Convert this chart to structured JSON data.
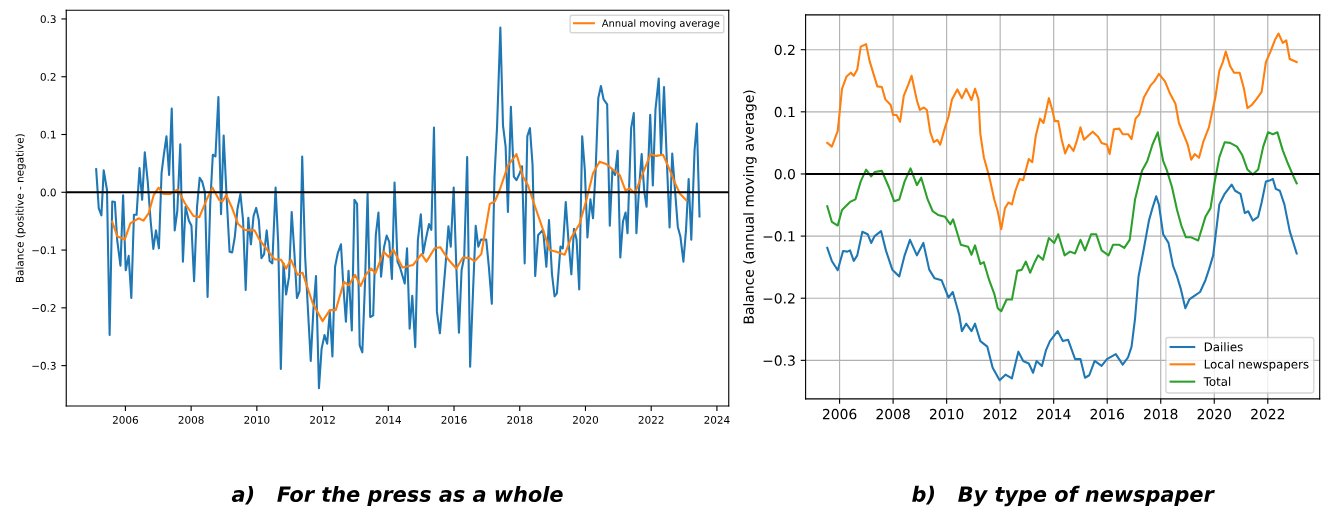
{
  "chart_data": [
    {
      "type": "line",
      "title": "a)   For the press as a whole",
      "ylabel": "Balance (positive - negative)",
      "xlim": [
        2004.2,
        2024.36
      ],
      "ylim": [
        -0.37,
        0.315
      ],
      "xticks": [
        2006,
        2008,
        2010,
        2012,
        2014,
        2016,
        2018,
        2020,
        2022,
        2024
      ],
      "yticks": [
        {
          "value": -0.3,
          "label": "−0.3"
        },
        {
          "value": -0.2,
          "label": "−0.2"
        },
        {
          "value": -0.1,
          "label": "−0.1"
        },
        {
          "value": 0,
          "label": "0.0"
        },
        {
          "value": 0.1,
          "label": "0.1"
        },
        {
          "value": 0.2,
          "label": "0.2"
        },
        {
          "value": 0.3,
          "label": "0.3"
        }
      ],
      "grid": false,
      "legend": "top right",
      "ref_lines": [
        {
          "axis": "y",
          "value": 0,
          "color": "#000000"
        }
      ],
      "series": [
        {
          "color": "#1f77b4",
          "x": [
            2005.11,
            2005.19,
            2005.27,
            2005.34,
            2005.44,
            2005.52,
            2005.6,
            2005.68,
            2005.75,
            2005.85,
            2005.93,
            2006.01,
            2006.1,
            2006.18,
            2006.26,
            2006.34,
            2006.43,
            2006.51,
            2006.59,
            2006.68,
            2006.77,
            2006.85,
            2006.93,
            2007.02,
            2007.1,
            2007.17,
            2007.25,
            2007.33,
            2007.41,
            2007.5,
            2007.58,
            2007.67,
            2007.75,
            2007.83,
            2007.93,
            2008.01,
            2008.09,
            2008.18,
            2008.26,
            2008.34,
            2008.42,
            2008.5,
            2008.58,
            2008.66,
            2008.74,
            2008.83,
            2008.91,
            2008.99,
            2009.08,
            2009.17,
            2009.25,
            2009.33,
            2009.41,
            2009.5,
            2009.58,
            2009.66,
            2009.74,
            2009.82,
            2009.9,
            2009.98,
            2010.06,
            2010.14,
            2010.22,
            2010.3,
            2010.39,
            2010.47,
            2010.57,
            2010.65,
            2010.73,
            2010.81,
            2010.89,
            2010.98,
            2011.06,
            2011.14,
            2011.22,
            2011.3,
            2011.38,
            2011.47,
            2011.55,
            2011.64,
            2011.72,
            2011.8,
            2011.89,
            2011.97,
            2012.06,
            2012.14,
            2012.22,
            2012.3,
            2012.38,
            2012.46,
            2012.56,
            2012.63,
            2012.71,
            2012.79,
            2012.89,
            2012.97,
            2013.05,
            2013.13,
            2013.21,
            2013.29,
            2013.37,
            2013.45,
            2013.54,
            2013.62,
            2013.7,
            2013.78,
            2013.87,
            2013.95,
            2014.03,
            2014.11,
            2014.19,
            2014.28,
            2014.35,
            2014.5,
            2014.57,
            2014.65,
            2014.73,
            2014.82,
            2014.9,
            2014.99,
            2015.06,
            2015.14,
            2015.24,
            2015.31,
            2015.39,
            2015.48,
            2015.57,
            2015.67,
            2015.75,
            2015.83,
            2015.9,
            2015.99,
            2016.07,
            2016.15,
            2016.23,
            2016.31,
            2016.4,
            2016.49,
            2016.58,
            2016.66,
            2016.74,
            2016.82,
            2016.98,
            2017.06,
            2017.15,
            2017.23,
            2017.31,
            2017.41,
            2017.49,
            2017.57,
            2017.64,
            2017.73,
            2017.82,
            2017.9,
            2018.0,
            2018.07,
            2018.15,
            2018.23,
            2018.31,
            2018.39,
            2018.47,
            2018.56,
            2018.71,
            2018.81,
            2018.89,
            2018.98,
            2019.06,
            2019.13,
            2019.24,
            2019.31,
            2019.4,
            2019.48,
            2019.57,
            2019.65,
            2019.73,
            2019.81,
            2019.9,
            2019.98,
            2020.06,
            2020.15,
            2020.23,
            2020.31,
            2020.39,
            2020.47,
            2020.55,
            2020.66,
            2020.74,
            2020.82,
            2020.9,
            2020.98,
            2021.06,
            2021.14,
            2021.22,
            2021.28,
            2021.39,
            2021.47,
            2021.55,
            2021.63,
            2021.71,
            2021.79,
            2021.86,
            2021.97,
            2022.05,
            2022.13,
            2022.23,
            2022.3,
            2022.39,
            2022.47,
            2022.56,
            2022.64,
            2022.81,
            2022.89,
            2022.98,
            2023.06,
            2023.14,
            2023.22,
            2023.32,
            2023.39,
            2023.47
          ],
          "values": [
            0.04,
            -0.028,
            -0.04,
            0.038,
            0.004,
            -0.247,
            -0.016,
            -0.017,
            -0.083,
            -0.127,
            -0.005,
            -0.135,
            -0.11,
            -0.183,
            -0.039,
            -0.039,
            0.042,
            -0.013,
            0.069,
            0.018,
            -0.051,
            -0.098,
            -0.066,
            -0.097,
            0.033,
            0.065,
            0.097,
            0.03,
            0.145,
            -0.066,
            -0.032,
            0.083,
            -0.12,
            -0.025,
            -0.049,
            -0.058,
            -0.154,
            -0.025,
            0.025,
            0.018,
            0,
            -0.181,
            -0.021,
            0.065,
            0.062,
            0.165,
            -0.038,
            0.098,
            -0.008,
            -0.103,
            -0.104,
            -0.077,
            -0.029,
            -0.003,
            -0.048,
            -0.169,
            -0.044,
            -0.09,
            -0.041,
            -0.027,
            -0.048,
            -0.114,
            -0.107,
            -0.066,
            -0.119,
            -0.123,
            0.008,
            -0.088,
            -0.306,
            -0.123,
            -0.177,
            -0.146,
            -0.034,
            -0.103,
            -0.183,
            -0.171,
            0.062,
            -0.112,
            -0.198,
            -0.292,
            -0.204,
            -0.145,
            -0.339,
            -0.271,
            -0.247,
            -0.262,
            -0.207,
            -0.284,
            -0.129,
            -0.106,
            -0.09,
            -0.161,
            -0.224,
            -0.136,
            -0.239,
            -0.013,
            -0.02,
            -0.265,
            -0.277,
            -0.159,
            -0.002,
            -0.216,
            -0.213,
            -0.074,
            -0.035,
            -0.146,
            -0.095,
            -0.075,
            -0.086,
            -0.15,
            0.017,
            -0.12,
            -0.129,
            -0.158,
            -0.097,
            -0.236,
            -0.179,
            -0.268,
            -0.083,
            -0.038,
            -0.106,
            -0.082,
            -0.055,
            -0.065,
            0.112,
            -0.207,
            -0.244,
            -0.175,
            -0.12,
            -0.059,
            -0.094,
            0.008,
            -0.129,
            -0.243,
            -0.135,
            -0.112,
            0.061,
            -0.302,
            -0.169,
            -0.058,
            -0.094,
            -0.082,
            -0.082,
            -0.129,
            -0.193,
            0.025,
            0.114,
            0.285,
            0.116,
            0.079,
            -0.034,
            0.148,
            0.027,
            0.021,
            0.033,
            0.045,
            -0.123,
            0.097,
            0.111,
            0.047,
            -0.145,
            -0.074,
            -0.065,
            -0.129,
            -0.048,
            -0.141,
            -0.18,
            -0.175,
            -0.094,
            -0.097,
            -0.017,
            -0.082,
            -0.142,
            -0.063,
            -0.082,
            -0.168,
            0.097,
            0.039,
            -0.078,
            -0.012,
            -0.045,
            0.039,
            0.163,
            0.184,
            0.161,
            0.152,
            -0.058,
            0.039,
            0.03,
            0.072,
            -0.113,
            -0.051,
            -0.035,
            -0.071,
            0.111,
            0.137,
            -0.071,
            0.006,
            0.066,
            0.001,
            -0.025,
            0.134,
            0.012,
            0.143,
            0.197,
            0.066,
            0.182,
            0.062,
            -0.061,
            0.067,
            -0.06,
            -0.077,
            -0.12,
            -0.065,
            0.023,
            -0.082,
            0.073,
            0.119,
            -0.042
          ]
        },
        {
          "name": "Annual moving average",
          "color": "#ff7f0e",
          "x": [
            2005.6,
            2005.75,
            2005.98,
            2006.15,
            2006.4,
            2006.55,
            2006.71,
            2006.86,
            2007.01,
            2007.16,
            2007.36,
            2007.59,
            2007.81,
            2008.07,
            2008.25,
            2008.47,
            2008.65,
            2008.85,
            2008.95,
            2009.07,
            2009.23,
            2009.43,
            2009.63,
            2009.93,
            2010.08,
            2010.28,
            2010.54,
            2010.74,
            2010.89,
            2011.04,
            2011.24,
            2011.39,
            2011.7,
            2012.0,
            2012.22,
            2012.4,
            2012.65,
            2012.8,
            2012.99,
            2013.16,
            2013.31,
            2013.48,
            2013.61,
            2013.86,
            2014.01,
            2014.15,
            2014.43,
            2014.75,
            2015.01,
            2015.16,
            2015.41,
            2015.58,
            2015.82,
            2016.07,
            2016.27,
            2016.48,
            2016.63,
            2016.83,
            2017.09,
            2017.24,
            2017.39,
            2017.64,
            2017.9,
            2018.1,
            2018.25,
            2018.45,
            2018.71,
            2018.91,
            2019.11,
            2019.37,
            2019.57,
            2019.82,
            2020.03,
            2020.23,
            2020.43,
            2020.63,
            2020.84,
            2021.04,
            2021.22,
            2021.34,
            2021.5,
            2021.75,
            2021.98,
            2022.16,
            2022.36,
            2022.51,
            2022.71,
            2022.87,
            2023.07
          ],
          "values": [
            -0.051,
            -0.076,
            -0.082,
            -0.054,
            -0.045,
            -0.049,
            -0.036,
            -0.005,
            0.008,
            -0.003,
            -0.003,
            0.005,
            -0.019,
            -0.041,
            -0.043,
            -0.013,
            0.008,
            -0.013,
            -0.016,
            -0.005,
            -0.025,
            -0.055,
            -0.065,
            -0.066,
            -0.082,
            -0.097,
            -0.116,
            -0.117,
            -0.132,
            -0.117,
            -0.143,
            -0.139,
            -0.192,
            -0.223,
            -0.204,
            -0.204,
            -0.155,
            -0.161,
            -0.143,
            -0.162,
            -0.143,
            -0.132,
            -0.14,
            -0.103,
            -0.112,
            -0.099,
            -0.13,
            -0.126,
            -0.107,
            -0.12,
            -0.097,
            -0.095,
            -0.116,
            -0.132,
            -0.113,
            -0.114,
            -0.119,
            -0.107,
            -0.02,
            -0.016,
            0.004,
            0.046,
            0.066,
            0.027,
            0.012,
            -0.022,
            -0.065,
            -0.1,
            -0.103,
            -0.108,
            -0.078,
            -0.055,
            -0.013,
            0.033,
            0.053,
            0.049,
            0.039,
            0.03,
            0.003,
            0.007,
            -0.002,
            0.033,
            0.066,
            0.063,
            0.065,
            0.046,
            0.018,
            -0.002,
            -0.014
          ]
        }
      ]
    },
    {
      "type": "line",
      "title": "b)   By type of newspaper",
      "ylabel": "Balance (annual moving average)",
      "xlim": [
        2004.73,
        2023.94
      ],
      "ylim": [
        -0.362,
        0.256
      ],
      "xticks": [
        2006,
        2008,
        2010,
        2012,
        2014,
        2016,
        2018,
        2020,
        2022
      ],
      "yticks": [
        {
          "value": -0.3,
          "label": "−0.3"
        },
        {
          "value": -0.2,
          "label": "−0.2"
        },
        {
          "value": -0.1,
          "label": "−0.1"
        },
        {
          "value": 0,
          "label": "0.0"
        },
        {
          "value": 0.1,
          "label": "0.1"
        },
        {
          "value": 0.2,
          "label": "0.2"
        }
      ],
      "grid": true,
      "legend": "bottom right",
      "ref_lines": [
        {
          "axis": "y",
          "value": 0,
          "color": "#000000"
        }
      ],
      "series": [
        {
          "name": "Dailies",
          "color": "#1f77b4",
          "x": [
            2005.54,
            2005.71,
            2005.93,
            2006.13,
            2006.29,
            2006.39,
            2006.53,
            2006.66,
            2006.85,
            2007.05,
            2007.18,
            2007.31,
            2007.55,
            2007.73,
            2007.97,
            2008.23,
            2008.43,
            2008.63,
            2008.89,
            2009.13,
            2009.35,
            2009.55,
            2009.81,
            2010.07,
            2010.23,
            2010.47,
            2010.57,
            2010.73,
            2010.93,
            2011.06,
            2011.26,
            2011.52,
            2011.72,
            2011.98,
            2012.2,
            2012.44,
            2012.68,
            2012.86,
            2013.07,
            2013.23,
            2013.36,
            2013.56,
            2013.71,
            2013.86,
            2014.15,
            2014.34,
            2014.54,
            2014.8,
            2015.0,
            2015.17,
            2015.33,
            2015.53,
            2015.79,
            2015.99,
            2016.32,
            2016.58,
            2016.78,
            2016.91,
            2017.04,
            2017.17,
            2017.37,
            2017.56,
            2017.69,
            2017.83,
            2017.93,
            2018.09,
            2018.29,
            2018.46,
            2018.61,
            2018.75,
            2018.92,
            2019.07,
            2019.27,
            2019.47,
            2019.67,
            2019.8,
            2019.96,
            2020.19,
            2020.39,
            2020.65,
            2020.78,
            2020.98,
            2021.14,
            2021.27,
            2021.44,
            2021.64,
            2021.77,
            2021.93,
            2022.1,
            2022.19,
            2022.3,
            2022.45,
            2022.62,
            2022.82,
            2023.08
          ],
          "values": [
            -0.119,
            -0.14,
            -0.155,
            -0.124,
            -0.125,
            -0.123,
            -0.14,
            -0.131,
            -0.093,
            -0.097,
            -0.111,
            -0.1,
            -0.092,
            -0.123,
            -0.154,
            -0.165,
            -0.131,
            -0.106,
            -0.131,
            -0.111,
            -0.154,
            -0.168,
            -0.171,
            -0.199,
            -0.19,
            -0.227,
            -0.253,
            -0.241,
            -0.253,
            -0.241,
            -0.269,
            -0.278,
            -0.312,
            -0.332,
            -0.323,
            -0.329,
            -0.286,
            -0.301,
            -0.305,
            -0.32,
            -0.301,
            -0.309,
            -0.284,
            -0.269,
            -0.253,
            -0.269,
            -0.267,
            -0.298,
            -0.298,
            -0.328,
            -0.324,
            -0.301,
            -0.309,
            -0.298,
            -0.29,
            -0.307,
            -0.295,
            -0.278,
            -0.233,
            -0.165,
            -0.12,
            -0.075,
            -0.055,
            -0.036,
            -0.049,
            -0.097,
            -0.111,
            -0.148,
            -0.165,
            -0.185,
            -0.216,
            -0.202,
            -0.196,
            -0.19,
            -0.171,
            -0.154,
            -0.131,
            -0.049,
            -0.032,
            -0.017,
            -0.027,
            -0.032,
            -0.063,
            -0.06,
            -0.075,
            -0.069,
            -0.046,
            -0.012,
            -0.01,
            -0.008,
            -0.024,
            -0.027,
            -0.049,
            -0.092,
            -0.128
          ]
        },
        {
          "name": "Local newspapers",
          "color": "#ff7f0e",
          "x": [
            2005.54,
            2005.71,
            2005.93,
            2006.09,
            2006.26,
            2006.42,
            2006.53,
            2006.66,
            2006.79,
            2006.99,
            2007.12,
            2007.41,
            2007.58,
            2007.71,
            2007.91,
            2008.0,
            2008.13,
            2008.26,
            2008.4,
            2008.56,
            2008.69,
            2008.89,
            2009.0,
            2009.15,
            2009.26,
            2009.39,
            2009.52,
            2009.65,
            2009.76,
            2009.94,
            2010.07,
            2010.2,
            2010.4,
            2010.57,
            2010.73,
            2010.93,
            2011.06,
            2011.19,
            2011.26,
            2011.39,
            2011.59,
            2011.78,
            2011.91,
            2012.04,
            2012.18,
            2012.31,
            2012.44,
            2012.57,
            2012.73,
            2012.86,
            2013.07,
            2013.2,
            2013.33,
            2013.49,
            2013.62,
            2013.82,
            2013.95,
            2014.04,
            2014.17,
            2014.3,
            2014.43,
            2014.57,
            2014.74,
            2014.87,
            2015.0,
            2015.13,
            2015.3,
            2015.46,
            2015.66,
            2015.79,
            2015.99,
            2016.09,
            2016.25,
            2016.45,
            2016.58,
            2016.78,
            2016.91,
            2017.06,
            2017.2,
            2017.37,
            2017.63,
            2017.76,
            2017.93,
            2018.16,
            2018.35,
            2018.55,
            2018.68,
            2018.85,
            2019.01,
            2019.14,
            2019.27,
            2019.43,
            2019.6,
            2019.8,
            2020.04,
            2020.19,
            2020.32,
            2020.43,
            2020.59,
            2020.74,
            2020.95,
            2021.11,
            2021.24,
            2021.4,
            2021.57,
            2021.77,
            2021.93,
            2022.1,
            2022.27,
            2022.4,
            2022.56,
            2022.69,
            2022.82,
            2023.08
          ],
          "values": [
            0.05,
            0.044,
            0.069,
            0.137,
            0.157,
            0.163,
            0.158,
            0.168,
            0.205,
            0.209,
            0.182,
            0.141,
            0.14,
            0.12,
            0.111,
            0.095,
            0.095,
            0.084,
            0.126,
            0.143,
            0.158,
            0.118,
            0.103,
            0.107,
            0.103,
            0.067,
            0.051,
            0.055,
            0.047,
            0.075,
            0.092,
            0.12,
            0.136,
            0.122,
            0.137,
            0.119,
            0.137,
            0.12,
            0.064,
            0.027,
            -0.004,
            -0.041,
            -0.06,
            -0.089,
            -0.055,
            -0.046,
            -0.049,
            -0.027,
            -0.008,
            -0.01,
            0.024,
            0.019,
            0.061,
            0.089,
            0.082,
            0.122,
            0.103,
            0.085,
            0.085,
            0.055,
            0.033,
            0.047,
            0.037,
            0.054,
            0.075,
            0.055,
            0.062,
            0.068,
            0.06,
            0.05,
            0.047,
            0.032,
            0.072,
            0.073,
            0.064,
            0.064,
            0.056,
            0.089,
            0.096,
            0.123,
            0.143,
            0.149,
            0.161,
            0.149,
            0.129,
            0.113,
            0.082,
            0.064,
            0.047,
            0.023,
            0.032,
            0.026,
            0.053,
            0.075,
            0.123,
            0.166,
            0.18,
            0.197,
            0.174,
            0.163,
            0.163,
            0.137,
            0.106,
            0.111,
            0.12,
            0.132,
            0.18,
            0.197,
            0.216,
            0.226,
            0.211,
            0.215,
            0.185,
            0.18
          ]
        },
        {
          "name": "Total",
          "color": "#2ca02c",
          "x": [
            2005.54,
            2005.71,
            2005.93,
            2006.09,
            2006.39,
            2006.59,
            2006.79,
            2006.99,
            2007.18,
            2007.31,
            2007.58,
            2007.84,
            2008.04,
            2008.23,
            2008.43,
            2008.65,
            2008.89,
            2009.05,
            2009.29,
            2009.48,
            2009.68,
            2009.94,
            2010.14,
            2010.24,
            2010.53,
            2010.8,
            2010.93,
            2011.06,
            2011.26,
            2011.39,
            2011.59,
            2011.78,
            2011.91,
            2012.04,
            2012.24,
            2012.44,
            2012.64,
            2012.81,
            2012.96,
            2013.12,
            2013.29,
            2013.42,
            2013.6,
            2013.82,
            2014.02,
            2014.17,
            2014.41,
            2014.61,
            2014.8,
            2015.0,
            2015.17,
            2015.4,
            2015.59,
            2015.79,
            2016.05,
            2016.22,
            2016.45,
            2016.64,
            2016.84,
            2017.04,
            2017.17,
            2017.3,
            2017.5,
            2017.69,
            2017.89,
            2018.09,
            2018.22,
            2018.42,
            2018.61,
            2018.77,
            2018.94,
            2019.14,
            2019.4,
            2019.67,
            2019.86,
            2020.02,
            2020.19,
            2020.39,
            2020.59,
            2020.85,
            2021.05,
            2021.24,
            2021.44,
            2021.64,
            2021.83,
            2022.01,
            2022.19,
            2022.36,
            2022.56,
            2022.76,
            2022.96,
            2023.08
          ],
          "values": [
            -0.052,
            -0.077,
            -0.083,
            -0.058,
            -0.045,
            -0.041,
            -0.012,
            0.007,
            -0.004,
            0.003,
            0.005,
            -0.021,
            -0.044,
            -0.041,
            -0.012,
            0.009,
            -0.018,
            -0.006,
            -0.041,
            -0.06,
            -0.066,
            -0.069,
            -0.081,
            -0.073,
            -0.114,
            -0.117,
            -0.13,
            -0.115,
            -0.145,
            -0.142,
            -0.171,
            -0.193,
            -0.216,
            -0.221,
            -0.202,
            -0.202,
            -0.156,
            -0.154,
            -0.141,
            -0.159,
            -0.142,
            -0.131,
            -0.138,
            -0.103,
            -0.111,
            -0.097,
            -0.131,
            -0.125,
            -0.128,
            -0.106,
            -0.123,
            -0.097,
            -0.097,
            -0.123,
            -0.131,
            -0.114,
            -0.114,
            -0.119,
            -0.106,
            -0.041,
            -0.018,
            0.005,
            0.021,
            0.047,
            0.067,
            0.021,
            0.007,
            -0.021,
            -0.058,
            -0.083,
            -0.102,
            -0.102,
            -0.107,
            -0.069,
            -0.055,
            -0.012,
            0.027,
            0.051,
            0.05,
            0.044,
            0.03,
            0.007,
            -0.001,
            0.007,
            0.044,
            0.067,
            0.064,
            0.067,
            0.038,
            0.016,
            -0.004,
            -0.015
          ]
        }
      ]
    }
  ]
}
